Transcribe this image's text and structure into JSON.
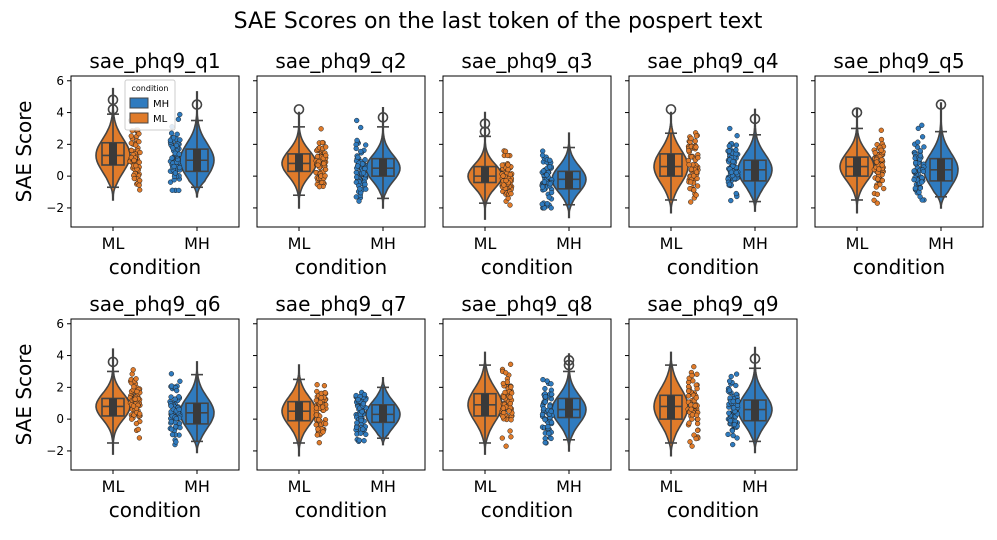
{
  "chart_data": {
    "type": "violin",
    "title": "SAE Scores on the last token of the pospert text",
    "ylabel": "SAE Score",
    "xlabel": "condition",
    "categories": [
      "ML",
      "MH"
    ],
    "ylim": [
      -3.2,
      6.3
    ],
    "yticks": [
      -2,
      0,
      2,
      4,
      6
    ],
    "colors": {
      "ML": "#e07b2a",
      "MH": "#2f7bbf",
      "edge": "#444444"
    },
    "legend": {
      "title": "condition",
      "entries": [
        "MH",
        "ML"
      ],
      "location": "top-left of first panel"
    },
    "panels": [
      {
        "name": "sae_phq9_q1",
        "ML": {
          "min": -0.7,
          "q1": 0.7,
          "median": 1.3,
          "q3": 2.1,
          "max": 3.9,
          "kde_low": -1.5,
          "kde_high": 5.5,
          "outliers": [
            4.2,
            4.8
          ]
        },
        "MH": {
          "min": -0.7,
          "q1": 0.3,
          "median": 1.0,
          "q3": 1.7,
          "max": 3.5,
          "kde_low": -1.3,
          "kde_high": 5.3,
          "outliers": [
            4.5
          ]
        }
      },
      {
        "name": "sae_phq9_q2",
        "ML": {
          "min": -1.2,
          "q1": 0.3,
          "median": 0.8,
          "q3": 1.4,
          "max": 3.1,
          "kde_low": -2.0,
          "kde_high": 4.0,
          "outliers": [
            4.2
          ]
        },
        "MH": {
          "min": -1.4,
          "q1": 0.0,
          "median": 0.5,
          "q3": 1.1,
          "max": 3.1,
          "kde_low": -2.0,
          "kde_high": 4.3,
          "outliers": [
            3.7
          ]
        }
      },
      {
        "name": "sae_phq9_q3",
        "ML": {
          "min": -1.7,
          "q1": -0.4,
          "median": 0.0,
          "q3": 0.6,
          "max": 2.5,
          "kde_low": -2.7,
          "kde_high": 4.0,
          "outliers": [
            2.8,
            3.3
          ]
        },
        "MH": {
          "min": -1.8,
          "q1": -0.8,
          "median": -0.2,
          "q3": 0.3,
          "max": 1.8,
          "kde_low": -2.6,
          "kde_high": 2.7,
          "outliers": []
        }
      },
      {
        "name": "sae_phq9_q4",
        "ML": {
          "min": -1.5,
          "q1": 0.0,
          "median": 0.6,
          "q3": 1.4,
          "max": 2.7,
          "kde_low": -2.3,
          "kde_high": 4.0,
          "outliers": [
            4.2
          ]
        },
        "MH": {
          "min": -1.6,
          "q1": -0.3,
          "median": 0.4,
          "q3": 1.0,
          "max": 2.6,
          "kde_low": -2.2,
          "kde_high": 4.2,
          "outliers": [
            3.6
          ]
        }
      },
      {
        "name": "sae_phq9_q5",
        "ML": {
          "min": -1.5,
          "q1": 0.0,
          "median": 0.6,
          "q3": 1.2,
          "max": 3.0,
          "kde_low": -2.3,
          "kde_high": 4.2,
          "outliers": [
            4.0
          ]
        },
        "MH": {
          "min": -1.3,
          "q1": -0.3,
          "median": 0.4,
          "q3": 1.1,
          "max": 2.8,
          "kde_low": -2.0,
          "kde_high": 4.6,
          "outliers": [
            4.5
          ]
        }
      },
      {
        "name": "sae_phq9_q6",
        "ML": {
          "min": -1.5,
          "q1": 0.2,
          "median": 0.8,
          "q3": 1.3,
          "max": 3.0,
          "kde_low": -2.2,
          "kde_high": 4.4,
          "outliers": [
            3.6
          ]
        },
        "MH": {
          "min": -1.4,
          "q1": -0.3,
          "median": 0.4,
          "q3": 1.0,
          "max": 2.8,
          "kde_low": -2.1,
          "kde_high": 3.6,
          "outliers": []
        }
      },
      {
        "name": "sae_phq9_q7",
        "ML": {
          "min": -1.5,
          "q1": -0.1,
          "median": 0.5,
          "q3": 1.1,
          "max": 2.5,
          "kde_low": -2.3,
          "kde_high": 3.4,
          "outliers": []
        },
        "MH": {
          "min": -1.2,
          "q1": -0.2,
          "median": 0.3,
          "q3": 0.9,
          "max": 2.0,
          "kde_low": -1.6,
          "kde_high": 2.6,
          "outliers": []
        }
      },
      {
        "name": "sae_phq9_q8",
        "ML": {
          "min": -1.5,
          "q1": 0.2,
          "median": 0.9,
          "q3": 1.6,
          "max": 3.4,
          "kde_low": -2.2,
          "kde_high": 4.2,
          "outliers": []
        },
        "MH": {
          "min": -1.3,
          "q1": 0.1,
          "median": 0.6,
          "q3": 1.3,
          "max": 3.0,
          "kde_low": -2.0,
          "kde_high": 4.1,
          "outliers": [
            3.4,
            3.7
          ]
        }
      },
      {
        "name": "sae_phq9_q9",
        "ML": {
          "min": -1.5,
          "q1": 0.0,
          "median": 0.8,
          "q3": 1.5,
          "max": 3.4,
          "kde_low": -2.3,
          "kde_high": 4.2,
          "outliers": []
        },
        "MH": {
          "min": -1.4,
          "q1": -0.1,
          "median": 0.6,
          "q3": 1.2,
          "max": 3.2,
          "kde_low": -2.1,
          "kde_high": 4.5,
          "outliers": [
            3.8
          ]
        }
      }
    ]
  }
}
